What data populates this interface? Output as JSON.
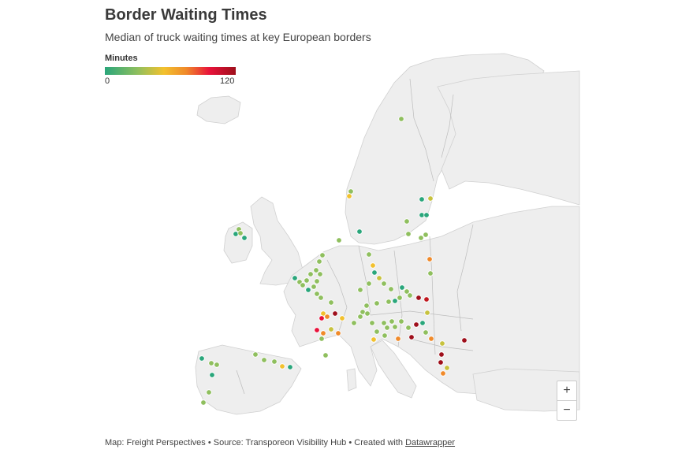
{
  "header": {
    "title": "Border Waiting Times",
    "subtitle": "Median of truck waiting times at key European borders"
  },
  "legend": {
    "title": "Minutes",
    "min_label": "0",
    "max_label": "120",
    "colors": [
      "#2aa67b",
      "#8fbf5e",
      "#f2c12e",
      "#f08a2a",
      "#e8123a",
      "#9e0f1b"
    ]
  },
  "zoom": {
    "in_label": "+",
    "out_label": "−"
  },
  "footer": {
    "text": "Map: Freight Perspectives • Source: Transporeon Visibility Hub • Created with ",
    "link": "Datawrapper"
  },
  "map_colors": {
    "land": "#eeeeee",
    "border": "#b8b8b8",
    "sea": "#ffffff"
  }
}
